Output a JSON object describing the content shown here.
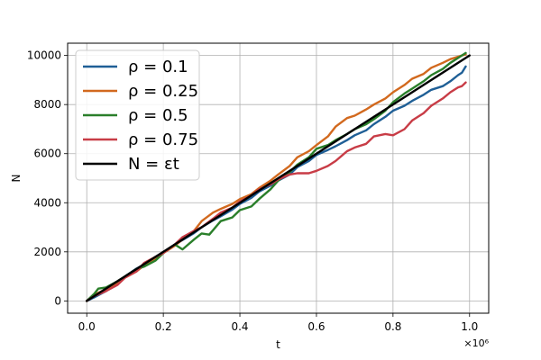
{
  "chart_data": {
    "type": "line",
    "title": "",
    "xlabel": "t",
    "ylabel": "N",
    "x_offset_label": "×10⁶",
    "xlim": [
      -0.05,
      1.05
    ],
    "ylim": [
      -500,
      10500
    ],
    "xticks": [
      0.0,
      0.2,
      0.4,
      0.6,
      0.8,
      1.0
    ],
    "xtick_labels": [
      "0.0",
      "0.2",
      "0.4",
      "0.6",
      "0.8",
      "1.0"
    ],
    "yticks": [
      0,
      2000,
      4000,
      6000,
      8000,
      10000
    ],
    "ytick_labels": [
      "0",
      "2000",
      "4000",
      "6000",
      "8000",
      "10000"
    ],
    "grid": true,
    "legend_position": "top-left",
    "series": [
      {
        "name": "ρ = 0.1",
        "color": "#1f5f96",
        "points": [
          [
            0,
            0
          ],
          [
            0.02,
            150
          ],
          [
            0.05,
            400
          ],
          [
            0.08,
            750
          ],
          [
            0.1,
            1000
          ],
          [
            0.13,
            1320
          ],
          [
            0.15,
            1480
          ],
          [
            0.18,
            1800
          ],
          [
            0.2,
            1980
          ],
          [
            0.23,
            2300
          ],
          [
            0.25,
            2480
          ],
          [
            0.28,
            2760
          ],
          [
            0.3,
            3000
          ],
          [
            0.33,
            3280
          ],
          [
            0.35,
            3450
          ],
          [
            0.38,
            3720
          ],
          [
            0.4,
            3950
          ],
          [
            0.43,
            4200
          ],
          [
            0.45,
            4450
          ],
          [
            0.48,
            4700
          ],
          [
            0.5,
            4900
          ],
          [
            0.53,
            5150
          ],
          [
            0.55,
            5450
          ],
          [
            0.58,
            5700
          ],
          [
            0.6,
            5950
          ],
          [
            0.63,
            6150
          ],
          [
            0.65,
            6300
          ],
          [
            0.68,
            6550
          ],
          [
            0.7,
            6750
          ],
          [
            0.73,
            6950
          ],
          [
            0.75,
            7200
          ],
          [
            0.78,
            7500
          ],
          [
            0.8,
            7750
          ],
          [
            0.83,
            7950
          ],
          [
            0.85,
            8150
          ],
          [
            0.88,
            8400
          ],
          [
            0.9,
            8600
          ],
          [
            0.93,
            8750
          ],
          [
            0.95,
            8950
          ],
          [
            0.97,
            9200
          ],
          [
            0.98,
            9300
          ],
          [
            0.99,
            9550
          ]
        ]
      },
      {
        "name": "ρ = 0.25",
        "color": "#d2691e",
        "points": [
          [
            0,
            0
          ],
          [
            0.02,
            250
          ],
          [
            0.05,
            480
          ],
          [
            0.08,
            700
          ],
          [
            0.1,
            950
          ],
          [
            0.13,
            1200
          ],
          [
            0.15,
            1450
          ],
          [
            0.18,
            1700
          ],
          [
            0.2,
            1950
          ],
          [
            0.23,
            2250
          ],
          [
            0.25,
            2500
          ],
          [
            0.28,
            2850
          ],
          [
            0.3,
            3250
          ],
          [
            0.33,
            3600
          ],
          [
            0.35,
            3750
          ],
          [
            0.38,
            3950
          ],
          [
            0.4,
            4150
          ],
          [
            0.43,
            4350
          ],
          [
            0.45,
            4600
          ],
          [
            0.48,
            4900
          ],
          [
            0.5,
            5150
          ],
          [
            0.53,
            5500
          ],
          [
            0.55,
            5850
          ],
          [
            0.58,
            6100
          ],
          [
            0.6,
            6350
          ],
          [
            0.63,
            6700
          ],
          [
            0.65,
            7100
          ],
          [
            0.68,
            7450
          ],
          [
            0.7,
            7550
          ],
          [
            0.73,
            7800
          ],
          [
            0.75,
            8000
          ],
          [
            0.78,
            8250
          ],
          [
            0.8,
            8500
          ],
          [
            0.83,
            8800
          ],
          [
            0.85,
            9050
          ],
          [
            0.88,
            9250
          ],
          [
            0.9,
            9500
          ],
          [
            0.93,
            9700
          ],
          [
            0.95,
            9850
          ],
          [
            0.97,
            9950
          ],
          [
            0.99,
            10050
          ]
        ]
      },
      {
        "name": "ρ = 0.5",
        "color": "#2a7f2a",
        "points": [
          [
            0,
            0
          ],
          [
            0.02,
            300
          ],
          [
            0.03,
            500
          ],
          [
            0.05,
            550
          ],
          [
            0.08,
            800
          ],
          [
            0.1,
            1000
          ],
          [
            0.13,
            1300
          ],
          [
            0.15,
            1400
          ],
          [
            0.18,
            1650
          ],
          [
            0.2,
            1950
          ],
          [
            0.23,
            2300
          ],
          [
            0.25,
            2100
          ],
          [
            0.28,
            2500
          ],
          [
            0.3,
            2750
          ],
          [
            0.32,
            2700
          ],
          [
            0.35,
            3250
          ],
          [
            0.38,
            3400
          ],
          [
            0.4,
            3700
          ],
          [
            0.43,
            3850
          ],
          [
            0.45,
            4150
          ],
          [
            0.48,
            4550
          ],
          [
            0.5,
            4900
          ],
          [
            0.53,
            5250
          ],
          [
            0.55,
            5550
          ],
          [
            0.58,
            5850
          ],
          [
            0.6,
            6200
          ],
          [
            0.63,
            6350
          ],
          [
            0.65,
            6550
          ],
          [
            0.68,
            6800
          ],
          [
            0.7,
            7000
          ],
          [
            0.73,
            7200
          ],
          [
            0.75,
            7400
          ],
          [
            0.78,
            7750
          ],
          [
            0.8,
            8100
          ],
          [
            0.83,
            8450
          ],
          [
            0.85,
            8650
          ],
          [
            0.88,
            8950
          ],
          [
            0.9,
            9200
          ],
          [
            0.93,
            9450
          ],
          [
            0.95,
            9700
          ],
          [
            0.97,
            9900
          ],
          [
            0.99,
            10100
          ]
        ]
      },
      {
        "name": "ρ = 0.75",
        "color": "#c83c46",
        "points": [
          [
            0,
            0
          ],
          [
            0.02,
            200
          ],
          [
            0.05,
            400
          ],
          [
            0.08,
            650
          ],
          [
            0.1,
            950
          ],
          [
            0.13,
            1200
          ],
          [
            0.15,
            1550
          ],
          [
            0.18,
            1800
          ],
          [
            0.2,
            1950
          ],
          [
            0.23,
            2300
          ],
          [
            0.25,
            2600
          ],
          [
            0.28,
            2850
          ],
          [
            0.3,
            3000
          ],
          [
            0.33,
            3350
          ],
          [
            0.35,
            3600
          ],
          [
            0.38,
            3800
          ],
          [
            0.4,
            4050
          ],
          [
            0.43,
            4300
          ],
          [
            0.45,
            4550
          ],
          [
            0.48,
            4750
          ],
          [
            0.5,
            4950
          ],
          [
            0.53,
            5150
          ],
          [
            0.55,
            5200
          ],
          [
            0.58,
            5200
          ],
          [
            0.6,
            5300
          ],
          [
            0.63,
            5500
          ],
          [
            0.65,
            5700
          ],
          [
            0.68,
            6100
          ],
          [
            0.7,
            6250
          ],
          [
            0.73,
            6400
          ],
          [
            0.75,
            6700
          ],
          [
            0.78,
            6800
          ],
          [
            0.8,
            6750
          ],
          [
            0.83,
            7000
          ],
          [
            0.85,
            7350
          ],
          [
            0.88,
            7650
          ],
          [
            0.9,
            7950
          ],
          [
            0.93,
            8250
          ],
          [
            0.95,
            8500
          ],
          [
            0.97,
            8700
          ],
          [
            0.98,
            8750
          ],
          [
            0.99,
            8900
          ]
        ]
      },
      {
        "name": "N  = εt",
        "color": "#000000",
        "points": [
          [
            0,
            0
          ],
          [
            1.0,
            10000
          ]
        ]
      }
    ]
  }
}
